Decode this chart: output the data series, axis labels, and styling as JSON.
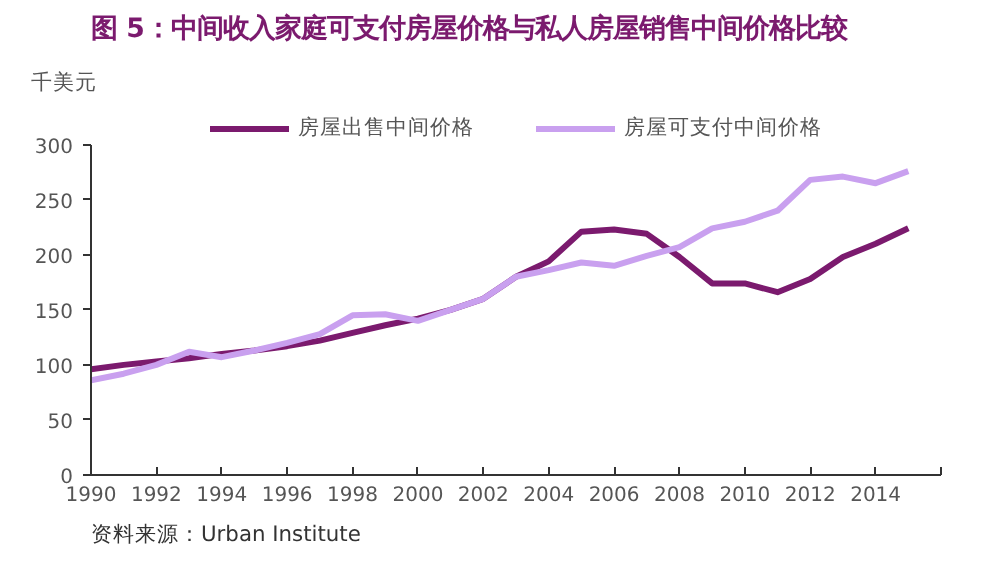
{
  "chart_data": {
    "type": "line",
    "title": "图 5：中间收入家庭可支付房屋价格与私人房屋销售中间价格比较",
    "ylabel": "千美元",
    "annotations": [
      "资料来源：Urban Institute"
    ],
    "x": [
      1990,
      1991,
      1992,
      1993,
      1994,
      1995,
      1996,
      1997,
      1998,
      1999,
      2000,
      2001,
      2002,
      2003,
      2004,
      2005,
      2006,
      2007,
      2008,
      2009,
      2010,
      2011,
      2012,
      2013,
      2014,
      2015
    ],
    "series": [
      {
        "name": "房屋出售中间价格",
        "color": "#7b1a6e",
        "values": [
          96,
          100,
          103,
          106,
          110,
          113,
          117,
          122,
          129,
          136,
          142,
          150,
          160,
          180,
          194,
          221,
          223,
          219,
          198,
          174,
          174,
          166,
          178,
          198,
          210,
          224
        ]
      },
      {
        "name": "房屋可支付中间价格",
        "color": "#c9a0ef",
        "values": [
          86,
          92,
          100,
          112,
          107,
          113,
          120,
          128,
          145,
          146,
          140,
          150,
          160,
          180,
          186,
          193,
          190,
          199,
          207,
          224,
          230,
          240,
          268,
          271,
          265,
          276
        ]
      }
    ],
    "xlim": [
      1990,
      2016
    ],
    "xticks": [
      1990,
      1992,
      1994,
      1996,
      1998,
      2000,
      2002,
      2004,
      2006,
      2008,
      2010,
      2012,
      2014,
      {
        "value": 2016,
        "label": null
      }
    ],
    "ylim": [
      0,
      300
    ],
    "yticks": [
      0,
      50,
      100,
      150,
      200,
      250,
      300
    ],
    "grid": false,
    "legend": "top",
    "marker": "none",
    "line_style": "solid"
  }
}
